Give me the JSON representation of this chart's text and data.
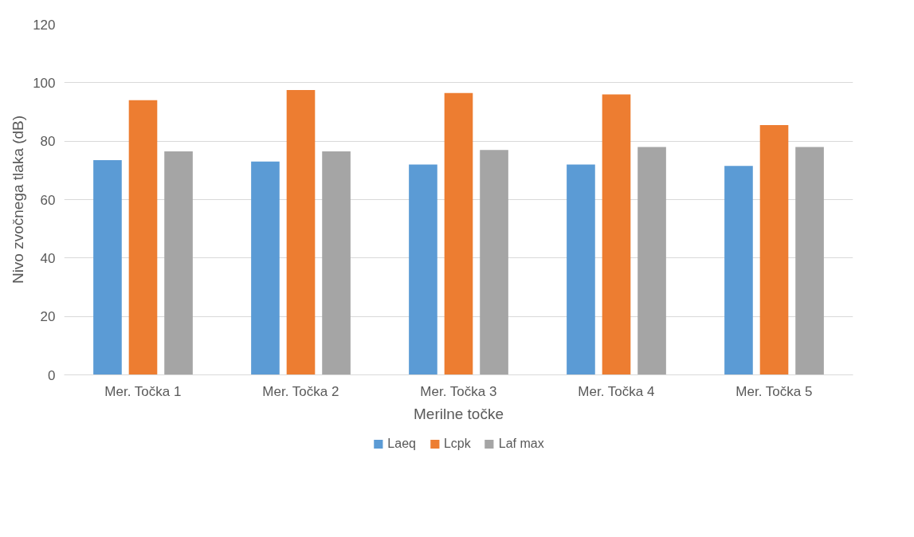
{
  "chart_data": {
    "type": "bar",
    "xlabel": "Merilne točke",
    "ylabel": "Nivo zvočnega tlaka (dB)",
    "categories": [
      "Mer. Točka 1",
      "Mer. Točka 2",
      "Mer. Točka 3",
      "Mer. Točka 4",
      "Mer. Točka 5"
    ],
    "series": [
      {
        "name": "Laeq",
        "color": "#5b9bd5",
        "values": [
          73.5,
          73,
          72,
          72,
          71.5
        ]
      },
      {
        "name": "Lcpk",
        "color": "#ed7d31",
        "values": [
          94,
          97.5,
          96.5,
          96,
          85.5
        ]
      },
      {
        "name": "Laf max",
        "color": "#a5a5a5",
        "values": [
          76.5,
          76.5,
          77,
          78,
          78
        ]
      }
    ],
    "ylim": [
      0,
      120
    ],
    "yticks": [
      0,
      20,
      40,
      60,
      80,
      100,
      120
    ],
    "grid": "y",
    "legend": "bottom"
  }
}
